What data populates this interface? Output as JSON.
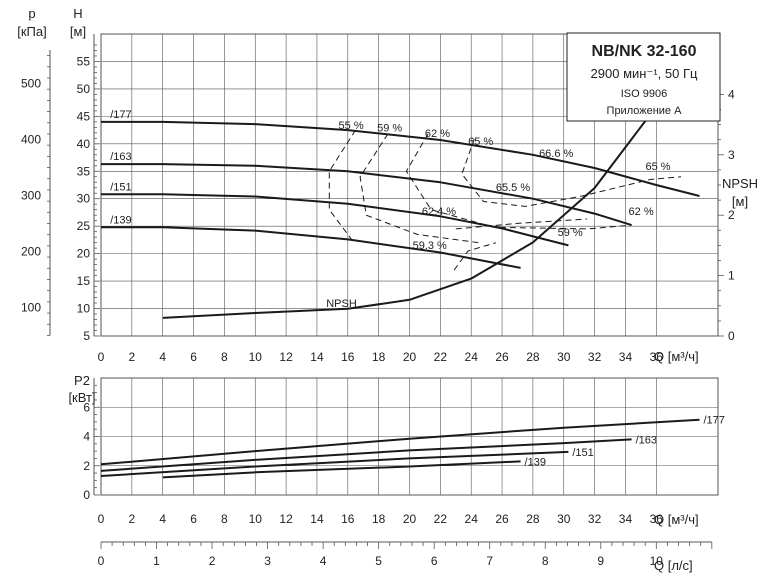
{
  "info_box": {
    "title": "NB/NK 32-160",
    "speed_freq": "2900 мин⁻¹, 50 Гц",
    "standard": "ISO 9906",
    "annex": "Приложение А"
  },
  "colors": {
    "curve": "#1a1a1a",
    "grid": "#555555",
    "background": "#ffffff"
  },
  "chart_data": [
    {
      "type": "line",
      "panel": "head",
      "left_axis_outer": {
        "label_top": "p",
        "label_unit": "[кПа]",
        "ticks": [
          100,
          200,
          300,
          400,
          500
        ]
      },
      "left_axis_inner": {
        "label_top": "H",
        "label_unit": "[м]",
        "ticks": [
          5,
          10,
          15,
          20,
          25,
          30,
          35,
          40,
          45,
          50,
          55
        ]
      },
      "right_axis": {
        "label_top": "NPSH",
        "label_unit": "[м]",
        "ticks": [
          0,
          1,
          2,
          3,
          4
        ],
        "ylim": [
          0,
          5
        ]
      },
      "x_axis": {
        "label": "Q [м³/ч]",
        "ticks": [
          0,
          2,
          4,
          6,
          8,
          10,
          12,
          14,
          16,
          18,
          20,
          22,
          24,
          26,
          28,
          30,
          32,
          34,
          36
        ],
        "xlim": [
          0,
          40
        ]
      },
      "ylim": [
        5,
        60
      ],
      "grid": true,
      "series": [
        {
          "name": "/177",
          "x": [
            0,
            4,
            10,
            16,
            22,
            28,
            32,
            36,
            38.8
          ],
          "y": [
            44,
            44,
            43.6,
            42.5,
            40.7,
            38,
            35.6,
            32.5,
            30.5
          ]
        },
        {
          "name": "/163",
          "x": [
            0,
            4,
            10,
            16,
            22,
            28,
            32,
            34.4
          ],
          "y": [
            36.3,
            36.3,
            36,
            35,
            33,
            30,
            27.3,
            25.2
          ]
        },
        {
          "name": "/151",
          "x": [
            0,
            4,
            10,
            16,
            22,
            26,
            30.3
          ],
          "y": [
            30.8,
            30.8,
            30.4,
            29.1,
            26.8,
            24.6,
            21.5
          ]
        },
        {
          "name": "/139",
          "x": [
            0,
            4,
            10,
            16,
            22,
            27.2
          ],
          "y": [
            24.8,
            24.8,
            24.2,
            22.6,
            20.2,
            17.4
          ]
        },
        {
          "name": "NPSH",
          "axis": "right",
          "x": [
            4,
            10,
            16,
            20,
            24,
            28,
            32,
            36
          ],
          "y": [
            0.3,
            0.38,
            0.45,
            0.6,
            0.95,
            1.55,
            2.45,
            3.8
          ]
        }
      ],
      "efficiency_labels": [
        "55 %",
        "59 %",
        "62 %",
        "65 %",
        "66.6 %",
        "65 %",
        "65.5 %",
        "62.4 %",
        "62 %",
        "59 %",
        "59.3 %"
      ]
    },
    {
      "type": "line",
      "panel": "power",
      "y_axis": {
        "label_top": "P2",
        "label_unit": "[кВт]",
        "ticks": [
          0,
          2,
          4,
          6
        ],
        "ylim": [
          0,
          8
        ]
      },
      "x_axis": {
        "label": "Q [м³/ч]",
        "ticks": [
          0,
          2,
          4,
          6,
          8,
          10,
          12,
          14,
          16,
          18,
          20,
          22,
          24,
          26,
          28,
          30,
          32,
          34,
          36
        ],
        "xlim": [
          0,
          40
        ]
      },
      "x_axis_2": {
        "label": "Q [л/с]",
        "ticks": [
          0,
          1,
          2,
          3,
          4,
          5,
          6,
          7,
          8,
          9,
          10
        ]
      },
      "grid": true,
      "series": [
        {
          "name": "/177",
          "x": [
            0,
            10,
            20,
            30,
            38.8
          ],
          "y": [
            2.1,
            3.0,
            3.85,
            4.6,
            5.15
          ]
        },
        {
          "name": "/163",
          "x": [
            0,
            10,
            20,
            30,
            34.4
          ],
          "y": [
            1.65,
            2.4,
            3.05,
            3.55,
            3.8
          ]
        },
        {
          "name": "/151",
          "x": [
            0,
            10,
            20,
            30.3
          ],
          "y": [
            1.3,
            1.95,
            2.5,
            2.95
          ]
        },
        {
          "name": "/139",
          "x": [
            4,
            10,
            20,
            27.2
          ],
          "y": [
            1.2,
            1.55,
            1.95,
            2.3
          ]
        }
      ]
    }
  ]
}
